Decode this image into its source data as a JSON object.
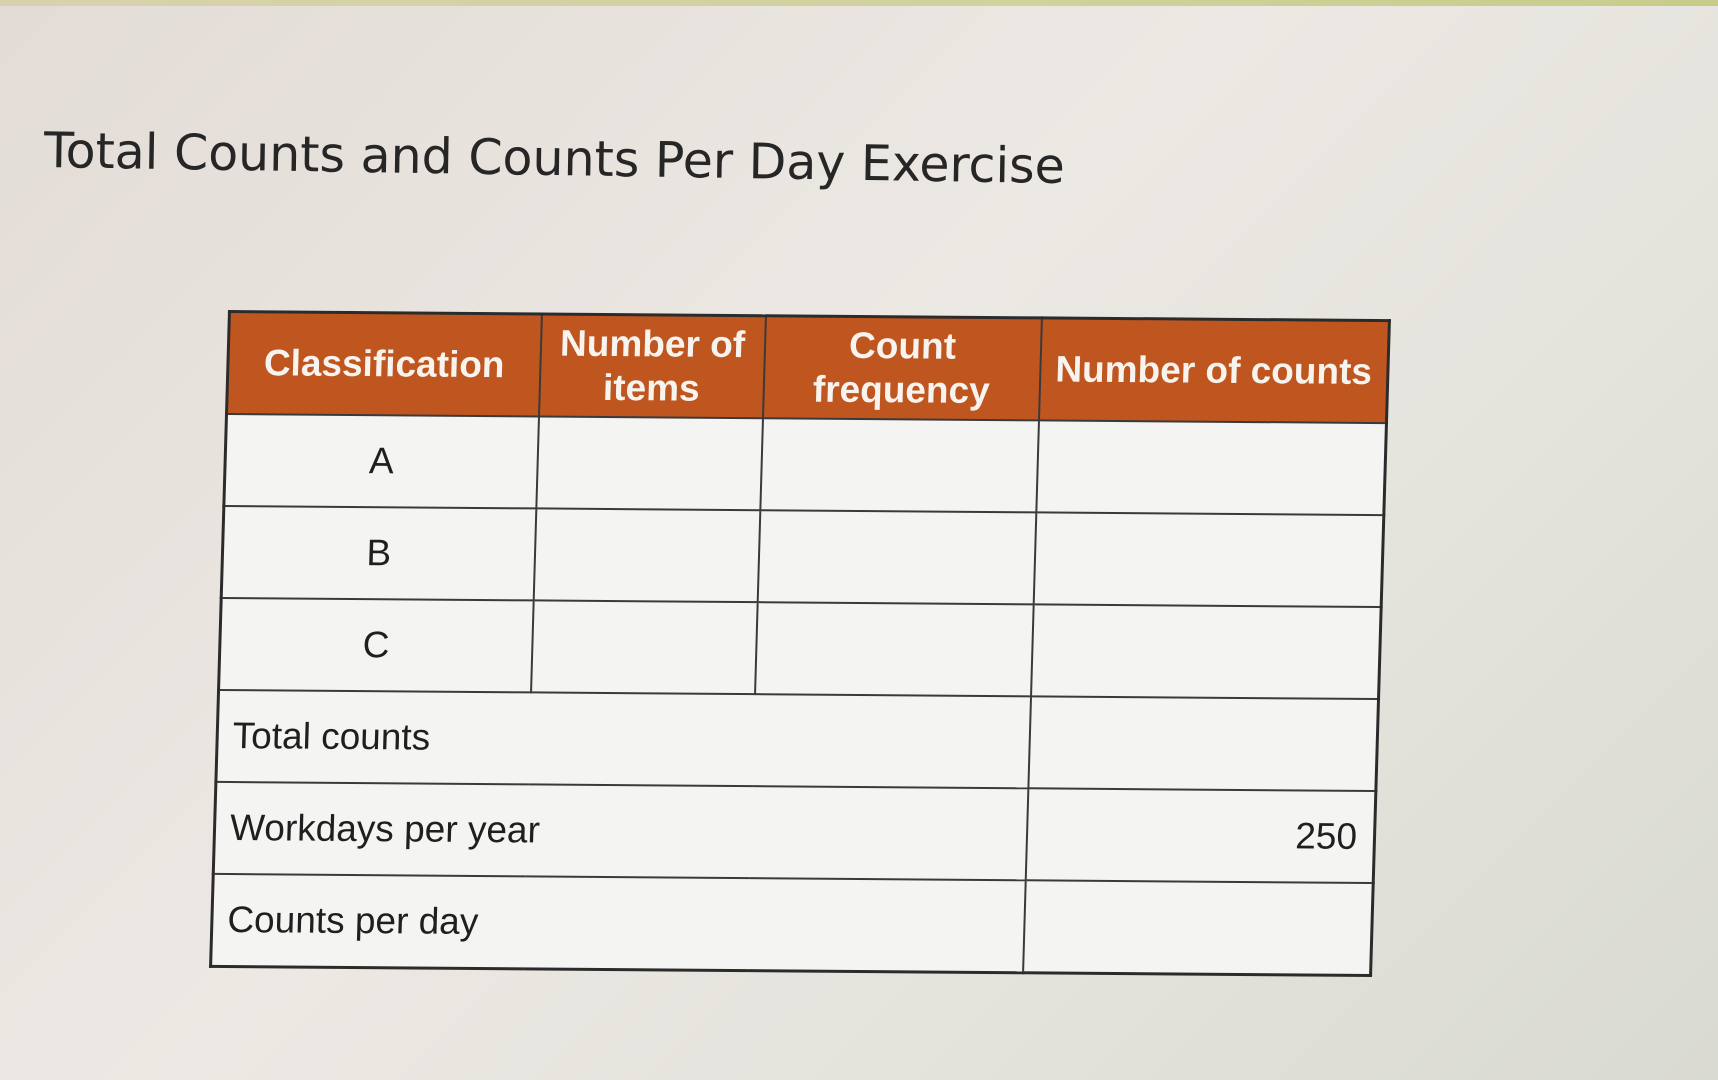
{
  "title": "Total Counts and Counts Per Day Exercise",
  "table": {
    "headers": [
      "Classification",
      "Number of items",
      "Count frequency",
      "Number of counts"
    ],
    "rows": [
      {
        "classification": "A",
        "items": "",
        "frequency": "",
        "counts": ""
      },
      {
        "classification": "B",
        "items": "",
        "frequency": "",
        "counts": ""
      },
      {
        "classification": "C",
        "items": "",
        "frequency": "",
        "counts": ""
      }
    ],
    "summary": [
      {
        "label": "Total counts",
        "value": ""
      },
      {
        "label": "Workdays per year",
        "value": "250"
      },
      {
        "label": "Counts per day",
        "value": ""
      }
    ]
  },
  "colors": {
    "header_background": "#c0561f",
    "header_text": "#f7f3ef",
    "border": "#3a3a3a"
  }
}
